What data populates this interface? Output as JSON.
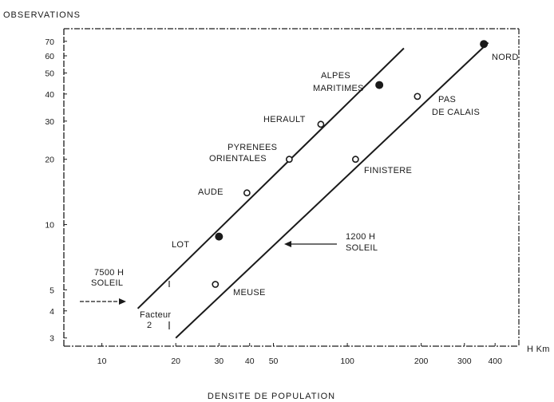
{
  "chart_data": {
    "type": "scatter",
    "title": "",
    "xlabel": "DENSITE DE POPULATION",
    "ylabel": "OBSERVATIONS",
    "x_unit": "H Km",
    "x_scale": "log",
    "y_scale": "log",
    "xlim": [
      7,
      500
    ],
    "ylim": [
      2.75,
      80
    ],
    "x_ticks": [
      10,
      20,
      30,
      40,
      50,
      100,
      200,
      300,
      400
    ],
    "x_tick_labels": [
      "10",
      "20",
      "30",
      "40",
      "50",
      "100",
      "200",
      "300",
      "400"
    ],
    "y_ticks": [
      3,
      4,
      5,
      10,
      20,
      30,
      40,
      50,
      60,
      70
    ],
    "y_tick_labels": [
      "3",
      "4",
      "5",
      "10",
      "20",
      "30",
      "40",
      "50",
      "60",
      "70"
    ],
    "grid": false,
    "points": [
      {
        "label": "LOT",
        "x": 30,
        "y": 8.8,
        "marker": "filled"
      },
      {
        "label": "AUDE",
        "x": 39,
        "y": 14,
        "marker": "open"
      },
      {
        "label": "PYRENEES ORIENTALES",
        "x": 58,
        "y": 20,
        "marker": "open"
      },
      {
        "label": "HERAULT",
        "x": 78,
        "y": 29,
        "marker": "open"
      },
      {
        "label": "ALPES MARITIMES",
        "x": 135,
        "y": 44,
        "marker": "filled"
      },
      {
        "label": "MEUSE",
        "x": 29,
        "y": 5.3,
        "marker": "open"
      },
      {
        "label": "FINISTERE",
        "x": 108,
        "y": 20,
        "marker": "open"
      },
      {
        "label": "PAS DE CALAIS",
        "x": 193,
        "y": 39,
        "marker": "open"
      },
      {
        "label": "NORD",
        "x": 360,
        "y": 68,
        "marker": "filled"
      }
    ],
    "series": [
      {
        "name": "7500 H SOLEIL",
        "x": [
          14,
          170
        ],
        "y": [
          4.1,
          65
        ]
      },
      {
        "name": "1200 H SOLEIL",
        "x": [
          20,
          375
        ],
        "y": [
          3,
          69
        ]
      }
    ],
    "annotations": [
      {
        "text": "7500 H",
        "line": 1
      },
      {
        "text": "SOLEIL",
        "line": 2
      },
      {
        "text": "1200 H",
        "line": 1
      },
      {
        "text": "SOLEIL",
        "line": 2
      },
      {
        "text": "Facteur",
        "line": 1
      },
      {
        "text": "2",
        "line": 2
      }
    ],
    "colors": {
      "ink": "#1a1a1a",
      "background": "#ffffff"
    }
  }
}
